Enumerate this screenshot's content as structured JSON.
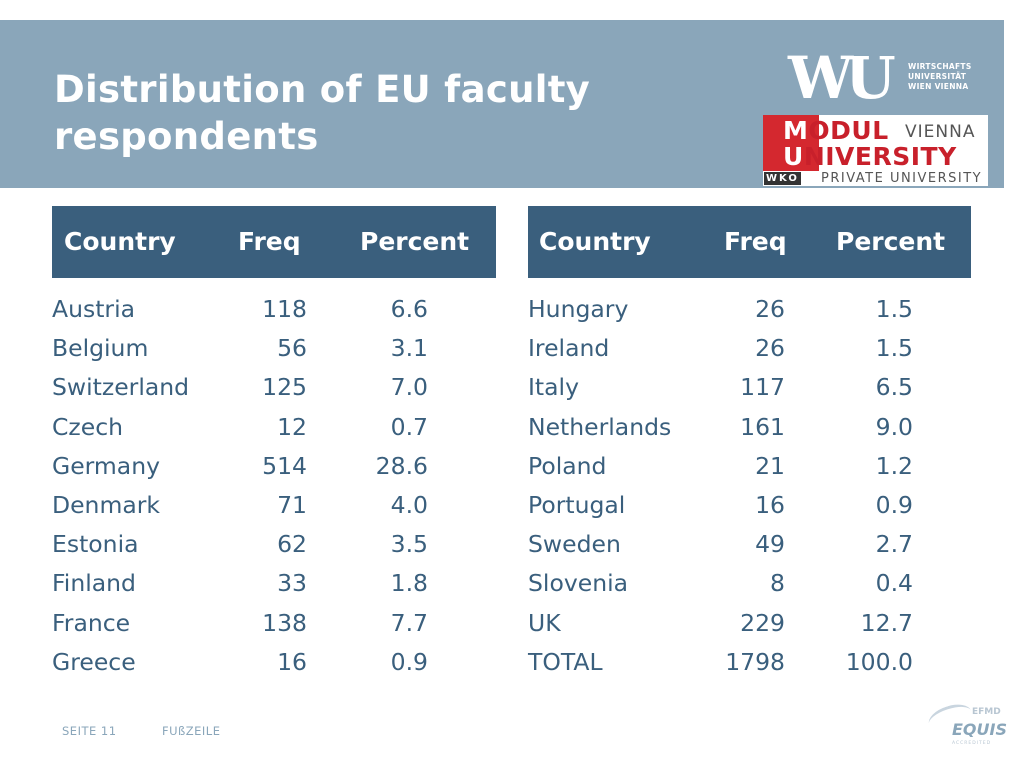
{
  "title": "Distribution of EU faculty respondents",
  "logos": {
    "wu_mark": "WU",
    "wu_text": [
      "WIRTSCHAFTS",
      "UNIVERSITÄT",
      "WIEN VIENNA"
    ],
    "modul_line1_red": "M",
    "modul_line1": "ODUL",
    "modul_vienna": "VIENNA",
    "modul_line2_red": "U",
    "modul_line2": "NIVERSITY",
    "wko": "WKO",
    "private": "PRIVATE UNIVERSITY",
    "efmd": "EFMD",
    "equis": "EQUIS",
    "accredited": "ACCREDITED"
  },
  "table_left": {
    "headers": [
      "Country",
      "Freq",
      "Percent"
    ],
    "rows": [
      [
        "Austria",
        "118",
        "6.6"
      ],
      [
        "Belgium",
        "56",
        "3.1"
      ],
      [
        "Switzerland",
        "125",
        "7.0"
      ],
      [
        "Czech",
        "12",
        "0.7"
      ],
      [
        "Germany",
        "514",
        "28.6"
      ],
      [
        "Denmark",
        "71",
        "4.0"
      ],
      [
        "Estonia",
        "62",
        "3.5"
      ],
      [
        "Finland",
        "33",
        "1.8"
      ],
      [
        "France",
        "138",
        "7.7"
      ],
      [
        "Greece",
        "16",
        "0.9"
      ]
    ]
  },
  "table_right": {
    "headers": [
      "Country",
      "Freq",
      "Percent"
    ],
    "rows": [
      [
        "Hungary",
        "26",
        "1.5"
      ],
      [
        "Ireland",
        "26",
        "1.5"
      ],
      [
        "Italy",
        "117",
        "6.5"
      ],
      [
        "Netherlands",
        "161",
        "9.0"
      ],
      [
        "Poland",
        "21",
        "1.2"
      ],
      [
        "Portugal",
        "16",
        "0.9"
      ],
      [
        "Sweden",
        "49",
        "2.7"
      ],
      [
        "Slovenia",
        "8",
        "0.4"
      ],
      [
        "UK",
        "229",
        "12.7"
      ],
      [
        "TOTAL",
        "1798",
        "100.0"
      ]
    ]
  },
  "footer": {
    "page": "SEITE 11",
    "label": "FUßZEILE"
  }
}
